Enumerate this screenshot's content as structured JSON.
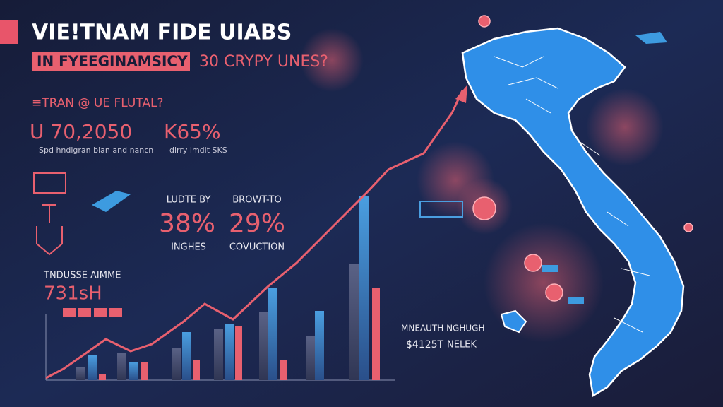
{
  "header": {
    "title": "VIE!TNAM FIDE UIABS",
    "subtitle": "IN FYEEGINAMSICY",
    "tagline": "30 CRYPY UNES?"
  },
  "stats": {
    "label": "≡TRAN @ UE FLUTAL?",
    "items": [
      {
        "value": "U 70,2050",
        "caption": "Spd hndigran bian and nancn"
      },
      {
        "value": "K65%",
        "caption": "dirry lmdlt SKS"
      }
    ]
  },
  "metrics": [
    {
      "label": "LUDTE BY",
      "value": "38%",
      "caption": "INGHES"
    },
    {
      "label": "BROWT-TO",
      "value": "29%",
      "caption": "COVUCTION"
    }
  ],
  "kpi": {
    "label": "TNDUSSE AIMME",
    "value": "731sH"
  },
  "footer": {
    "label": "MNEAUTH NGHUGH",
    "value": "$4125T",
    "note": "NELEK"
  }
}
